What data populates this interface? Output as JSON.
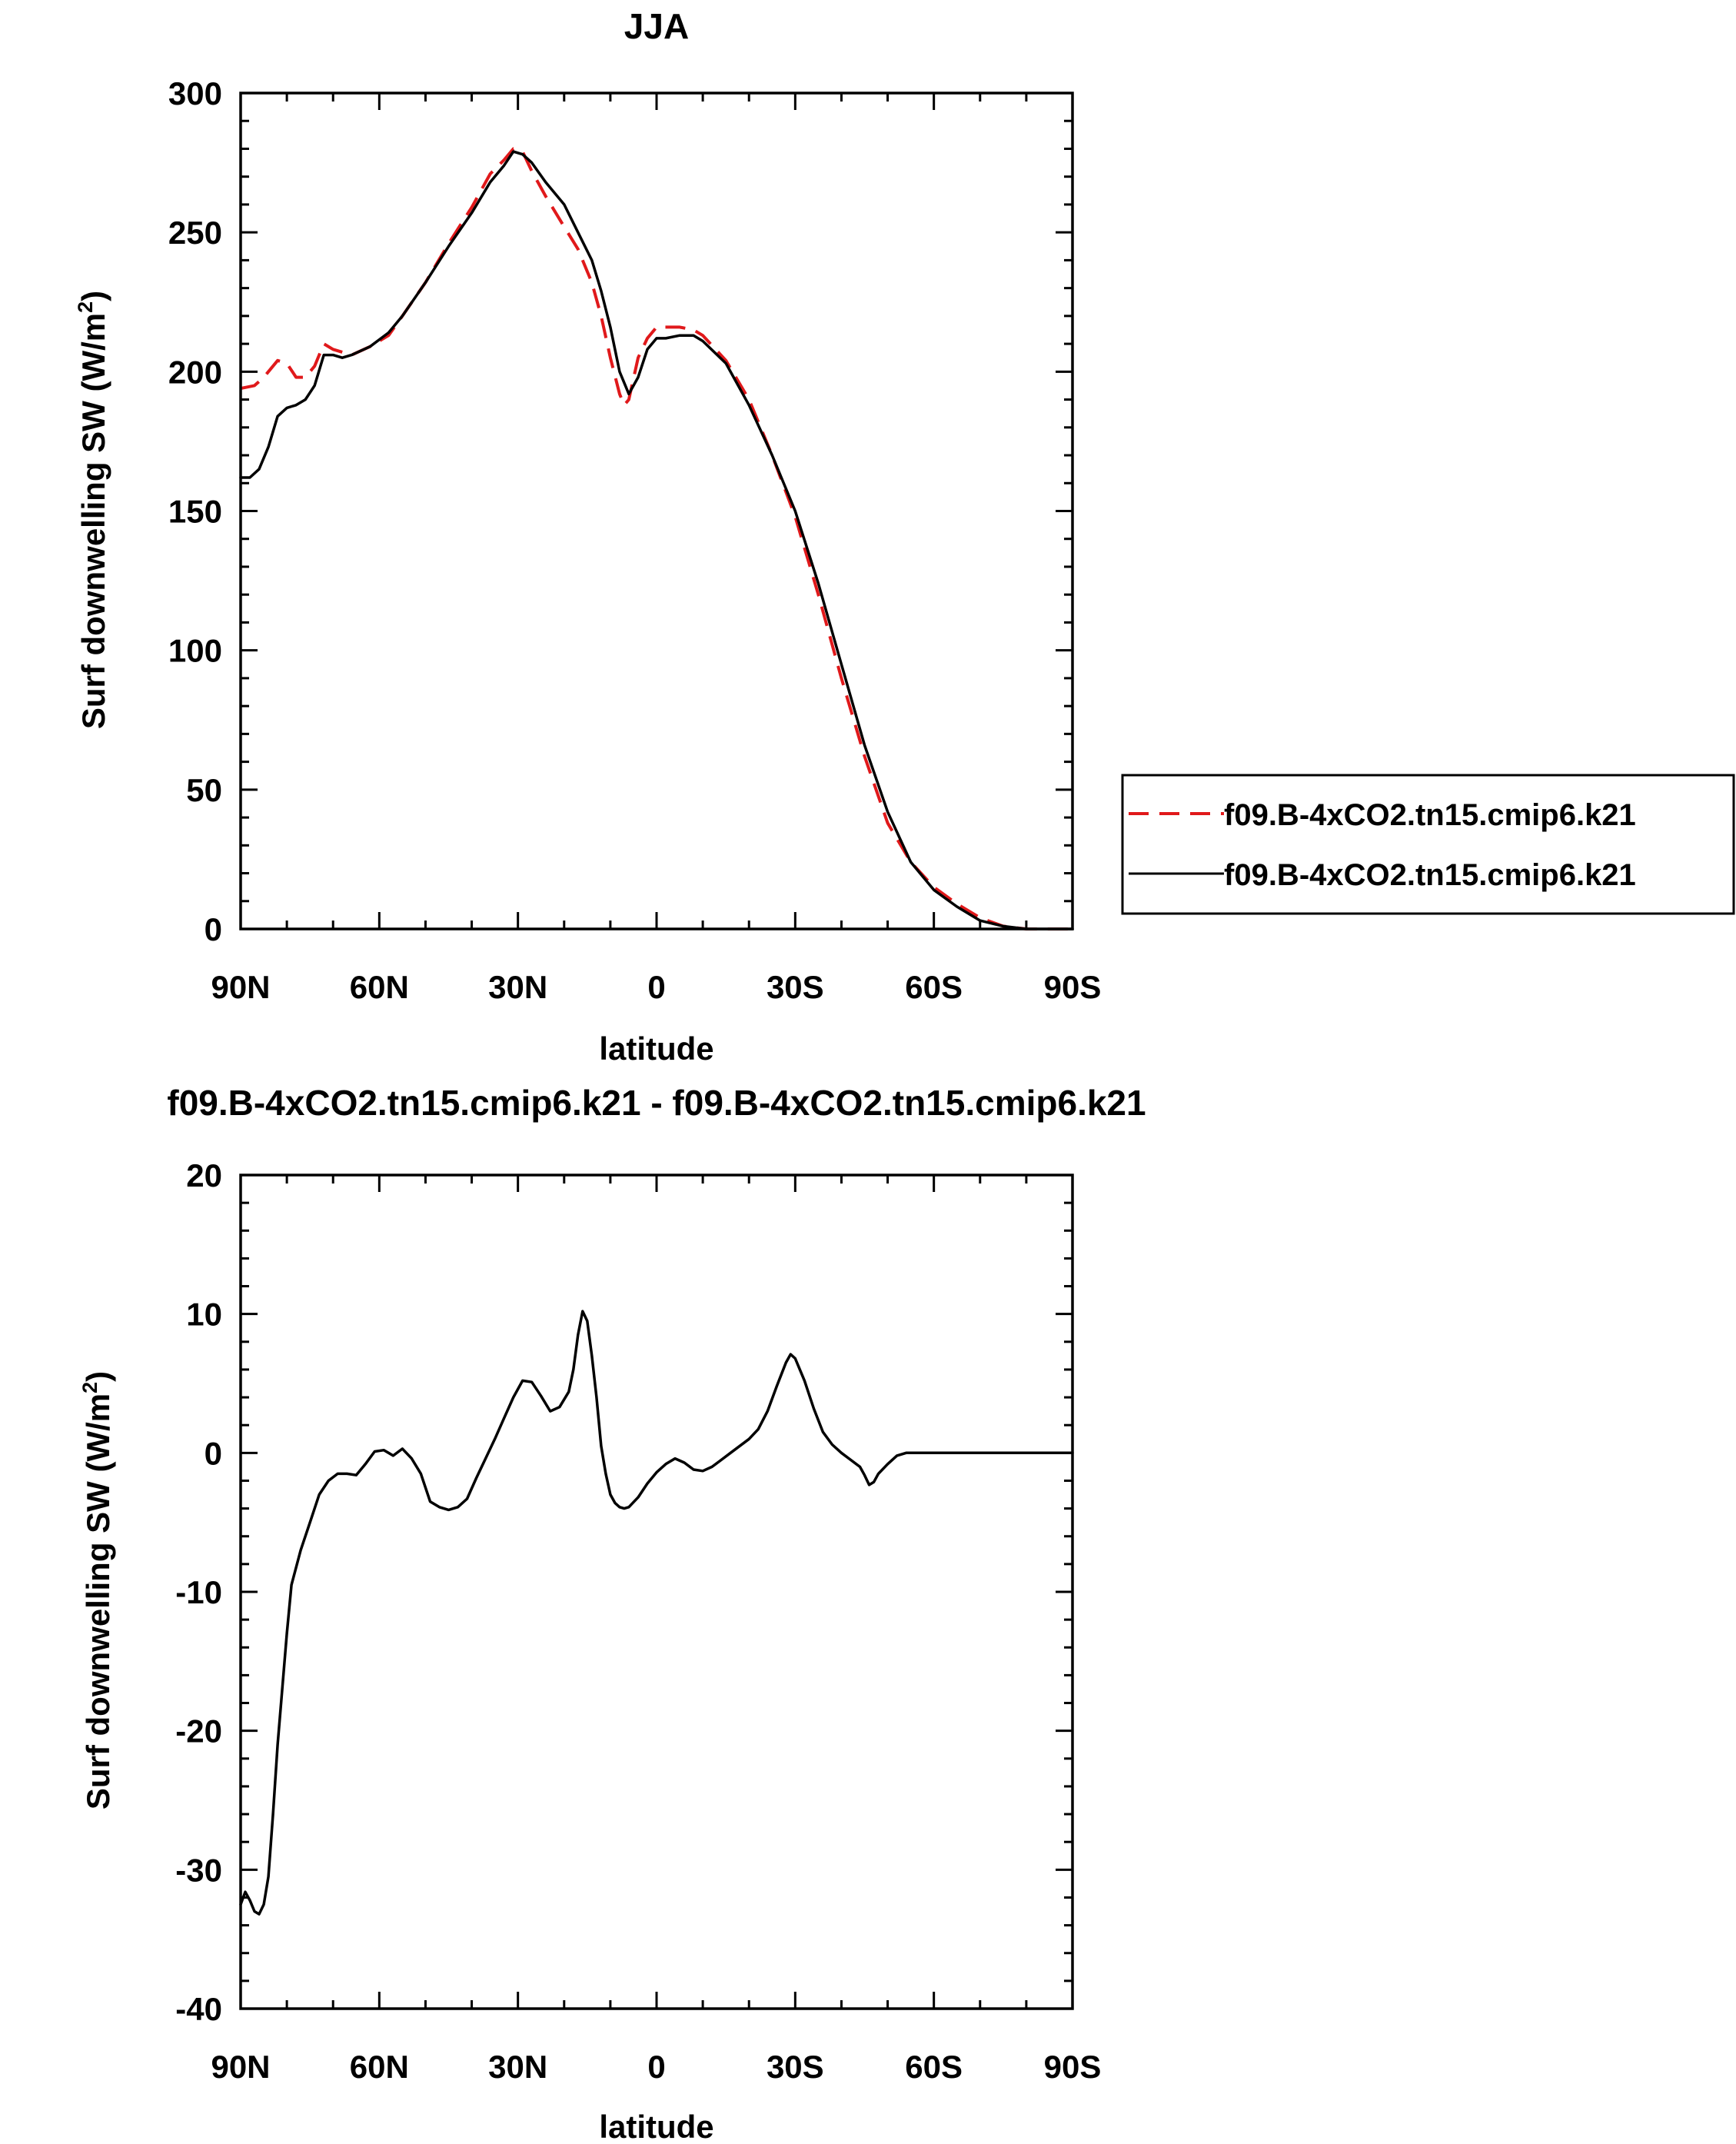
{
  "chart_data": [
    {
      "type": "line",
      "title": "JJA",
      "xlabel": "latitude",
      "ylabel": "Surf downwelling SW (W/m",
      "ylabel_sup": "2",
      "ylabel_end": ")",
      "xlim": [
        90,
        -90
      ],
      "ylim": [
        0,
        300
      ],
      "x_ticks": [
        {
          "value": 90,
          "label": "90N"
        },
        {
          "value": 60,
          "label": "60N"
        },
        {
          "value": 30,
          "label": "30N"
        },
        {
          "value": 0,
          "label": "0"
        },
        {
          "value": -30,
          "label": "30S"
        },
        {
          "value": -60,
          "label": "60S"
        },
        {
          "value": -90,
          "label": "90S"
        }
      ],
      "y_ticks": [
        {
          "value": 0,
          "label": "0"
        },
        {
          "value": 50,
          "label": "50"
        },
        {
          "value": 100,
          "label": "100"
        },
        {
          "value": 150,
          "label": "150"
        },
        {
          "value": 200,
          "label": "200"
        },
        {
          "value": 250,
          "label": "250"
        },
        {
          "value": 300,
          "label": "300"
        }
      ],
      "legend_position": "right, outside",
      "series": [
        {
          "name": "f09.B-4xCO2.tn15.cmip6.k21",
          "color": "#e0191b",
          "dash": "dashed",
          "points": [
            [
              90,
              194
            ],
            [
              87,
              195
            ],
            [
              85,
              198
            ],
            [
              82,
              204
            ],
            [
              80,
              203
            ],
            [
              78,
              198
            ],
            [
              76,
              198
            ],
            [
              74,
              202
            ],
            [
              72,
              210
            ],
            [
              70,
              208
            ],
            [
              66,
              206
            ],
            [
              62,
              209
            ],
            [
              58,
              213
            ],
            [
              55,
              220
            ],
            [
              50,
              232
            ],
            [
              45,
              246
            ],
            [
              40,
              259
            ],
            [
              36,
              271
            ],
            [
              33,
              276
            ],
            [
              31,
              280
            ],
            [
              29,
              279
            ],
            [
              27,
              272
            ],
            [
              24,
              263
            ],
            [
              20,
              252
            ],
            [
              17,
              244
            ],
            [
              14,
              232
            ],
            [
              12,
              220
            ],
            [
              10,
              205
            ],
            [
              8,
              192
            ],
            [
              7,
              188
            ],
            [
              6,
              190
            ],
            [
              4,
              205
            ],
            [
              2,
              212
            ],
            [
              0,
              216
            ],
            [
              -2,
              216
            ],
            [
              -5,
              216
            ],
            [
              -8,
              215
            ],
            [
              -10,
              213
            ],
            [
              -15,
              204
            ],
            [
              -20,
              190
            ],
            [
              -25,
              170
            ],
            [
              -30,
              148
            ],
            [
              -35,
              120
            ],
            [
              -40,
              90
            ],
            [
              -45,
              62
            ],
            [
              -50,
              38
            ],
            [
              -55,
              24
            ],
            [
              -60,
              15
            ],
            [
              -65,
              9
            ],
            [
              -70,
              4
            ],
            [
              -75,
              1
            ],
            [
              -80,
              0
            ],
            [
              -90,
              0
            ]
          ]
        },
        {
          "name": "f09.B-4xCO2.tn15.cmip6.k21",
          "color": "#000000",
          "dash": "solid",
          "points": [
            [
              90,
              162
            ],
            [
              88,
              162
            ],
            [
              86,
              165
            ],
            [
              84,
              173
            ],
            [
              82,
              184
            ],
            [
              80,
              187
            ],
            [
              78,
              188
            ],
            [
              76,
              190
            ],
            [
              74,
              195
            ],
            [
              72,
              206
            ],
            [
              70,
              206
            ],
            [
              68,
              205
            ],
            [
              66,
              206
            ],
            [
              62,
              209
            ],
            [
              58,
              214
            ],
            [
              55,
              220
            ],
            [
              50,
              232
            ],
            [
              45,
              245
            ],
            [
              40,
              257
            ],
            [
              36,
              268
            ],
            [
              33,
              274
            ],
            [
              31,
              279
            ],
            [
              29,
              278
            ],
            [
              27,
              275
            ],
            [
              24,
              268
            ],
            [
              20,
              260
            ],
            [
              17,
              250
            ],
            [
              14,
              240
            ],
            [
              12,
              229
            ],
            [
              10,
              216
            ],
            [
              8,
              200
            ],
            [
              6,
              192
            ],
            [
              4,
              198
            ],
            [
              2,
              208
            ],
            [
              0,
              212
            ],
            [
              -2,
              212
            ],
            [
              -5,
              213
            ],
            [
              -8,
              213
            ],
            [
              -10,
              211
            ],
            [
              -15,
              203
            ],
            [
              -20,
              188
            ],
            [
              -25,
              170
            ],
            [
              -30,
              150
            ],
            [
              -35,
              124
            ],
            [
              -40,
              95
            ],
            [
              -45,
              66
            ],
            [
              -50,
              42
            ],
            [
              -55,
              24
            ],
            [
              -60,
              14
            ],
            [
              -65,
              8
            ],
            [
              -70,
              3
            ],
            [
              -75,
              1
            ],
            [
              -80,
              0
            ],
            [
              -90,
              0
            ]
          ]
        }
      ]
    },
    {
      "type": "line",
      "title": "f09.B-4xCO2.tn15.cmip6.k21 - f09.B-4xCO2.tn15.cmip6.k21",
      "xlabel": "latitude",
      "ylabel": "Surf downwelling SW (W/m",
      "ylabel_sup": "2",
      "ylabel_end": ")",
      "xlim": [
        90,
        -90
      ],
      "ylim": [
        -40,
        20
      ],
      "x_ticks": [
        {
          "value": 90,
          "label": "90N"
        },
        {
          "value": 60,
          "label": "60N"
        },
        {
          "value": 30,
          "label": "30N"
        },
        {
          "value": 0,
          "label": "0"
        },
        {
          "value": -30,
          "label": "30S"
        },
        {
          "value": -60,
          "label": "60S"
        },
        {
          "value": -90,
          "label": "90S"
        }
      ],
      "y_ticks": [
        {
          "value": -40,
          "label": "-40"
        },
        {
          "value": -30,
          "label": "-30"
        },
        {
          "value": -20,
          "label": "-20"
        },
        {
          "value": -10,
          "label": "-10"
        },
        {
          "value": 0,
          "label": "0"
        },
        {
          "value": 10,
          "label": "10"
        },
        {
          "value": 20,
          "label": "20"
        }
      ],
      "series": [
        {
          "color": "#000000",
          "dash": "solid",
          "points": [
            [
              90,
              -32.5
            ],
            [
              89,
              -31.6
            ],
            [
              88,
              -32.2
            ],
            [
              87,
              -33
            ],
            [
              86,
              -33.2
            ],
            [
              85,
              -32.5
            ],
            [
              84,
              -30.5
            ],
            [
              83,
              -26
            ],
            [
              82,
              -21
            ],
            [
              81,
              -17
            ],
            [
              80,
              -13
            ],
            [
              79,
              -9.5
            ],
            [
              77,
              -7
            ],
            [
              75,
              -5
            ],
            [
              73,
              -3
            ],
            [
              71,
              -2
            ],
            [
              69,
              -1.5
            ],
            [
              67,
              -1.5
            ],
            [
              65,
              -1.6
            ],
            [
              63,
              -0.8
            ],
            [
              61,
              0.1
            ],
            [
              59,
              0.2
            ],
            [
              57,
              -0.2
            ],
            [
              55,
              0.3
            ],
            [
              53,
              -0.4
            ],
            [
              51,
              -1.5
            ],
            [
              49,
              -3.5
            ],
            [
              47,
              -3.9
            ],
            [
              45,
              -4.1
            ],
            [
              43,
              -3.9
            ],
            [
              41,
              -3.3
            ],
            [
              39,
              -1.8
            ],
            [
              37,
              -0.4
            ],
            [
              35,
              1
            ],
            [
              33,
              2.5
            ],
            [
              31,
              4
            ],
            [
              29,
              5.2
            ],
            [
              27,
              5.1
            ],
            [
              25,
              4.1
            ],
            [
              23,
              3
            ],
            [
              21,
              3.3
            ],
            [
              19,
              4.4
            ],
            [
              18,
              6
            ],
            [
              17,
              8.5
            ],
            [
              16,
              10.2
            ],
            [
              15,
              9.5
            ],
            [
              14,
              7
            ],
            [
              13,
              4
            ],
            [
              12,
              0.5
            ],
            [
              11,
              -1.5
            ],
            [
              10,
              -3
            ],
            [
              9,
              -3.6
            ],
            [
              8,
              -3.9
            ],
            [
              7,
              -4
            ],
            [
              6,
              -3.9
            ],
            [
              4,
              -3.2
            ],
            [
              2,
              -2.2
            ],
            [
              0,
              -1.4
            ],
            [
              -2,
              -0.8
            ],
            [
              -4,
              -0.4
            ],
            [
              -6,
              -0.7
            ],
            [
              -8,
              -1.2
            ],
            [
              -10,
              -1.3
            ],
            [
              -12,
              -1
            ],
            [
              -14,
              -0.5
            ],
            [
              -16,
              0
            ],
            [
              -18,
              0.5
            ],
            [
              -20,
              1
            ],
            [
              -22,
              1.7
            ],
            [
              -24,
              3
            ],
            [
              -26,
              4.8
            ],
            [
              -28,
              6.5
            ],
            [
              -29,
              7.1
            ],
            [
              -30,
              6.8
            ],
            [
              -32,
              5.2
            ],
            [
              -34,
              3.2
            ],
            [
              -36,
              1.5
            ],
            [
              -38,
              0.6
            ],
            [
              -40,
              0
            ],
            [
              -42,
              -0.5
            ],
            [
              -44,
              -1
            ],
            [
              -45,
              -1.6
            ],
            [
              -46,
              -2.3
            ],
            [
              -47,
              -2.1
            ],
            [
              -48,
              -1.5
            ],
            [
              -50,
              -0.8
            ],
            [
              -52,
              -0.2
            ],
            [
              -54,
              0
            ],
            [
              -60,
              0
            ],
            [
              -70,
              0
            ],
            [
              -80,
              0
            ],
            [
              -90,
              0
            ]
          ]
        }
      ]
    }
  ]
}
